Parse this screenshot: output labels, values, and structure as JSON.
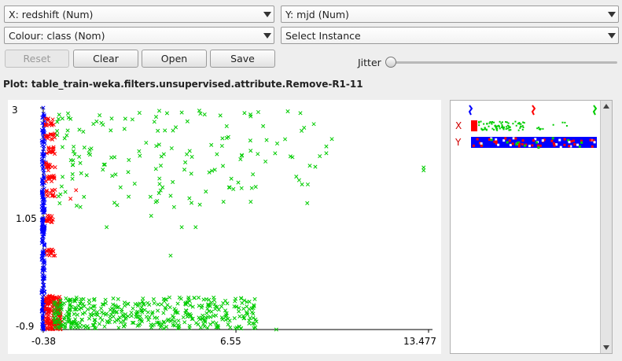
{
  "controls": {
    "x_axis": "X: redshift (Num)",
    "y_axis": "Y: mjd (Num)",
    "colour": "Colour: class (Nom)",
    "instance": "Select Instance",
    "reset": "Reset",
    "clear": "Clear",
    "open": "Open",
    "save": "Save",
    "jitter": "Jitter",
    "jitter_level": 0
  },
  "plot": {
    "title": "Plot: table_train-weka.filters.unsupervised.attribute.Remove-R1-11"
  },
  "chart_data": {
    "type": "scatter",
    "x_ticks": [
      "-0.38",
      "6.55",
      "13.477"
    ],
    "y_ticks": [
      "3",
      "1.05",
      "-0.9"
    ],
    "xlim": [
      -0.38,
      13.477
    ],
    "ylim": [
      -0.9,
      3
    ],
    "marker": "x",
    "series": [
      {
        "color": "#0000ff",
        "x": [
          -0.38,
          -0.38,
          -0.37,
          -0.36,
          -0.35,
          -0.34,
          -0.33,
          -0.32
        ],
        "y": [
          3,
          2.4,
          1.8,
          1.2,
          0.6,
          0.0,
          -0.5,
          -0.9
        ]
      },
      {
        "color": "#ff0000",
        "x": [
          -0.3,
          -0.25,
          -0.2,
          -0.15,
          -0.1,
          0.0,
          0.3,
          0.6,
          0.8
        ],
        "y": [
          2.5,
          2.2,
          1.9,
          1.05,
          0.45,
          -0.35,
          -0.75,
          1.4,
          1.55
        ]
      },
      {
        "color": "#00cc00",
        "x": [
          0.5,
          1.1,
          1.8,
          2.4,
          3.5,
          4.2,
          5.0,
          6.5,
          8.0,
          9.8,
          13.3
        ],
        "y": [
          2.6,
          2.3,
          2.0,
          1.6,
          1.1,
          0.4,
          -0.5,
          -0.7,
          -0.9,
          2.2,
          1.9
        ]
      }
    ],
    "legend_rows": [
      "X",
      "Y"
    ]
  },
  "colors": {
    "class_1": "#0000ff",
    "class_2": "#ff0000",
    "class_3": "#00cc00"
  }
}
